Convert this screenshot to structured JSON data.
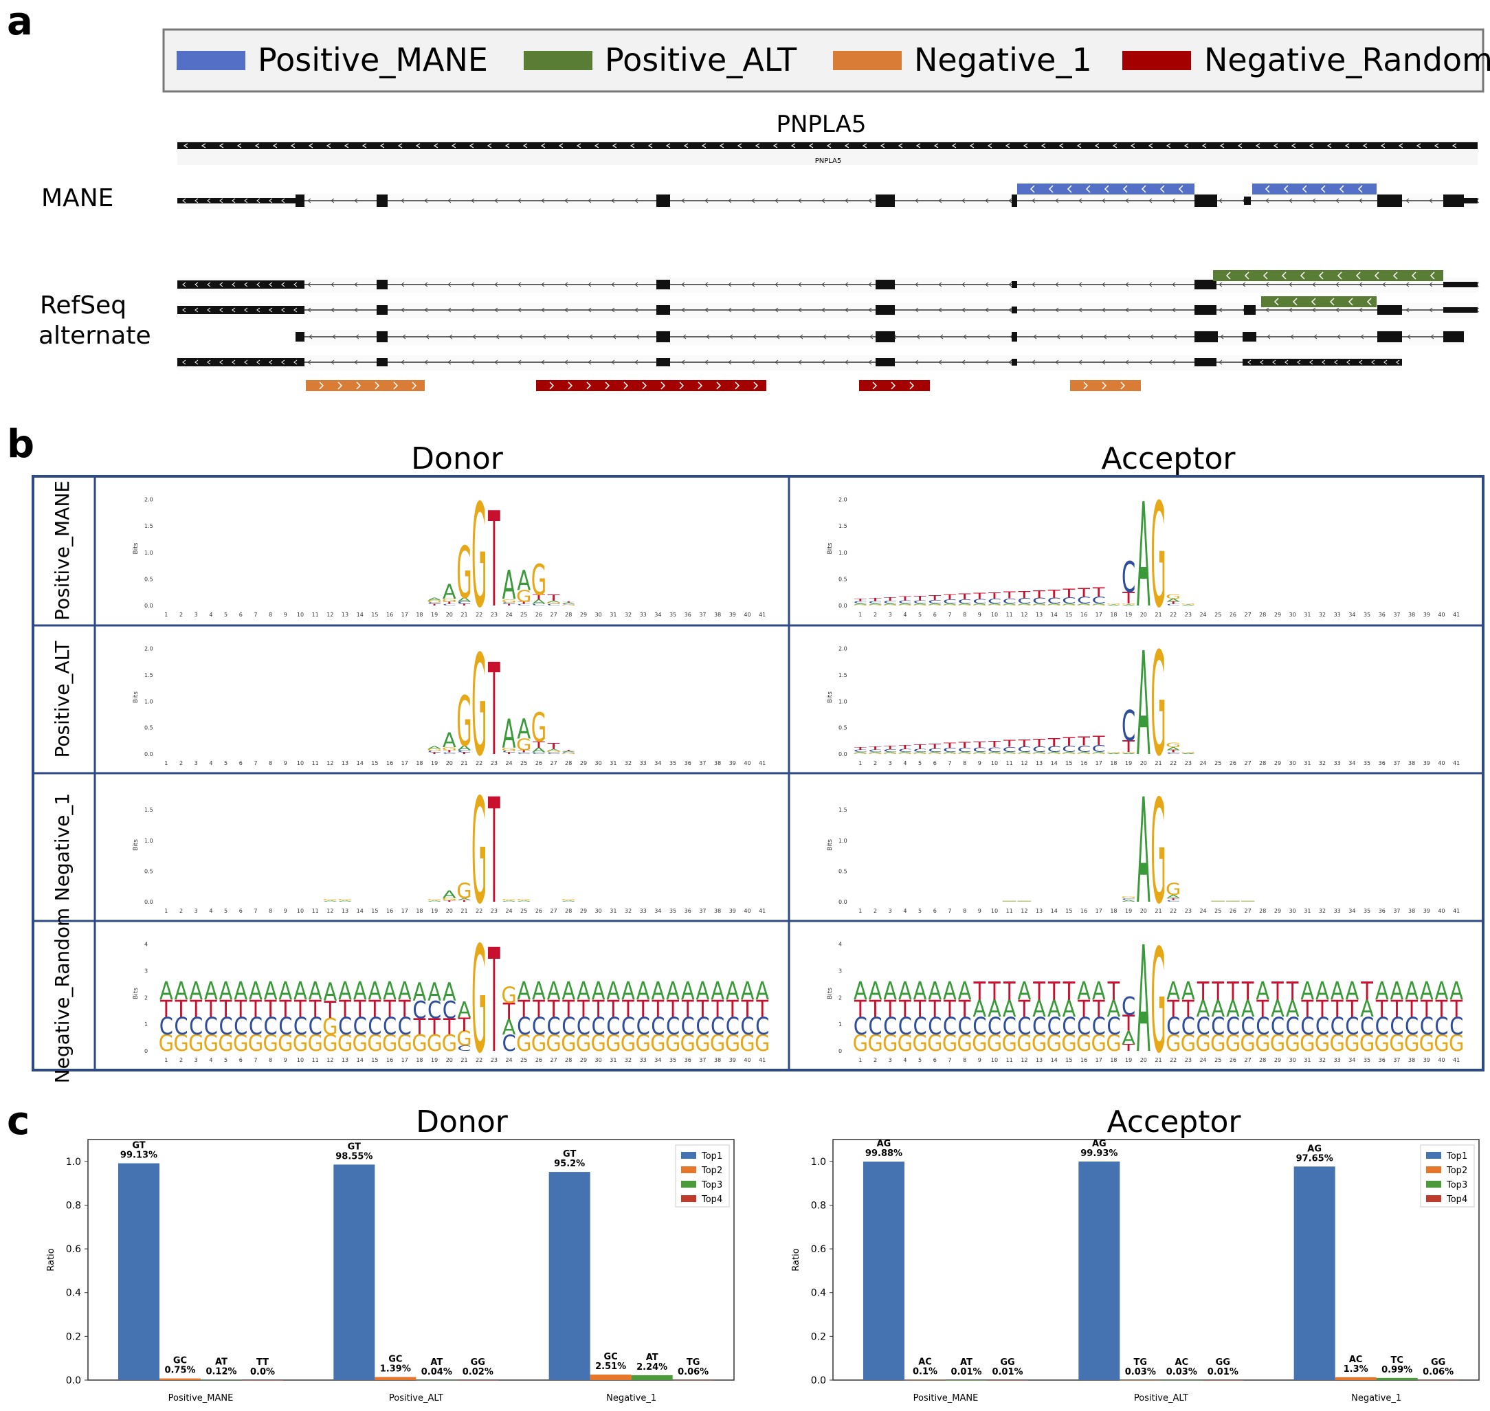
{
  "panels": {
    "a": "a",
    "b": "b",
    "c": "c"
  },
  "legend": [
    {
      "label": "Positive_MANE",
      "color": "#5470c6"
    },
    {
      "label": "Positive_ALT",
      "color": "#5a7d35"
    },
    {
      "label": "Negative_1",
      "color": "#d97d36"
    },
    {
      "label": "Negative_Random",
      "color": "#a50000"
    }
  ],
  "gene": {
    "name": "PNPLA5",
    "small_name": "PNPLA5"
  },
  "tracks": {
    "mane": "MANE",
    "refseq_line1": "RefSeq",
    "refseq_line2": "alternate"
  },
  "logos": {
    "columns": [
      "Donor",
      "Acceptor"
    ],
    "rows": [
      "Positive_MANE",
      "Positive_ALT",
      "Negative_1",
      "Negative_Random"
    ],
    "ylabel": "Bits",
    "positions": [
      "1",
      "2",
      "3",
      "4",
      "5",
      "6",
      "7",
      "8",
      "9",
      "10",
      "11",
      "12",
      "13",
      "14",
      "15",
      "16",
      "17",
      "18",
      "19",
      "20",
      "21",
      "22",
      "23",
      "24",
      "25",
      "26",
      "27",
      "28",
      "29",
      "30",
      "31",
      "32",
      "33",
      "34",
      "35",
      "36",
      "37",
      "38",
      "39",
      "40",
      "41"
    ],
    "yticks_small": [
      "0.0",
      "0.5",
      "1.0",
      "1.5",
      "2.0"
    ],
    "yticks_neg1": [
      "0.0",
      "0.5",
      "1.0",
      "1.5"
    ],
    "yticks_random": [
      "0",
      "1",
      "2",
      "3",
      "4"
    ],
    "colors": {
      "A": "#3a9a3a",
      "C": "#2e4d9b",
      "G": "#e6a817",
      "T": "#c8102e"
    }
  },
  "chart_data": [
    {
      "type": "bar",
      "title": "Donor",
      "ylabel": "Ratio",
      "ylim": [
        0,
        1.1
      ],
      "yticks": [
        "0.0",
        "0.2",
        "0.4",
        "0.6",
        "0.8",
        "1.0"
      ],
      "categories": [
        "Positive_MANE",
        "Positive_ALT",
        "Negative_1"
      ],
      "legend": [
        "Top1",
        "Top2",
        "Top3",
        "Top4"
      ],
      "series": [
        {
          "name": "Top1",
          "values": [
            0.9913,
            0.9855,
            0.952
          ],
          "labels": [
            "GT",
            "GT",
            "GT"
          ],
          "pct": [
            "99.13%",
            "98.55%",
            "95.2%"
          ]
        },
        {
          "name": "Top2",
          "values": [
            0.0075,
            0.0139,
            0.0251
          ],
          "labels": [
            "GC",
            "GC",
            "GC"
          ],
          "pct": [
            "0.75%",
            "1.39%",
            "2.51%"
          ]
        },
        {
          "name": "Top3",
          "values": [
            0.0012,
            0.0004,
            0.0224
          ],
          "labels": [
            "AT",
            "AT",
            "AT"
          ],
          "pct": [
            "0.12%",
            "0.04%",
            "2.24%"
          ]
        },
        {
          "name": "Top4",
          "values": [
            0.0,
            0.0002,
            0.0006
          ],
          "labels": [
            "TT",
            "GG",
            "TG"
          ],
          "pct": [
            "0.0%",
            "0.02%",
            "0.06%"
          ]
        }
      ]
    },
    {
      "type": "bar",
      "title": "Acceptor",
      "ylabel": "Ratio",
      "ylim": [
        0,
        1.1
      ],
      "yticks": [
        "0.0",
        "0.2",
        "0.4",
        "0.6",
        "0.8",
        "1.0"
      ],
      "categories": [
        "Positive_MANE",
        "Positive_ALT",
        "Negative_1"
      ],
      "legend": [
        "Top1",
        "Top2",
        "Top3",
        "Top4"
      ],
      "series": [
        {
          "name": "Top1",
          "values": [
            0.9988,
            0.9993,
            0.9765
          ],
          "labels": [
            "AG",
            "AG",
            "AG"
          ],
          "pct": [
            "99.88%",
            "99.93%",
            "97.65%"
          ]
        },
        {
          "name": "Top2",
          "values": [
            0.001,
            0.0003,
            0.013
          ],
          "labels": [
            "AC",
            "TG",
            "AC"
          ],
          "pct": [
            "0.1%",
            "0.03%",
            "1.3%"
          ]
        },
        {
          "name": "Top3",
          "values": [
            0.0001,
            0.0003,
            0.0099
          ],
          "labels": [
            "AT",
            "AC",
            "TC"
          ],
          "pct": [
            "0.01%",
            "0.03%",
            "0.99%"
          ]
        },
        {
          "name": "Top4",
          "values": [
            0.0001,
            0.0001,
            0.0006
          ],
          "labels": [
            "GG",
            "GG",
            "GG"
          ],
          "pct": [
            "0.01%",
            "0.01%",
            "0.06%"
          ]
        }
      ]
    }
  ],
  "bar_colors": [
    "#4572b0",
    "#e5762a",
    "#4c9a3a",
    "#c0392b"
  ]
}
